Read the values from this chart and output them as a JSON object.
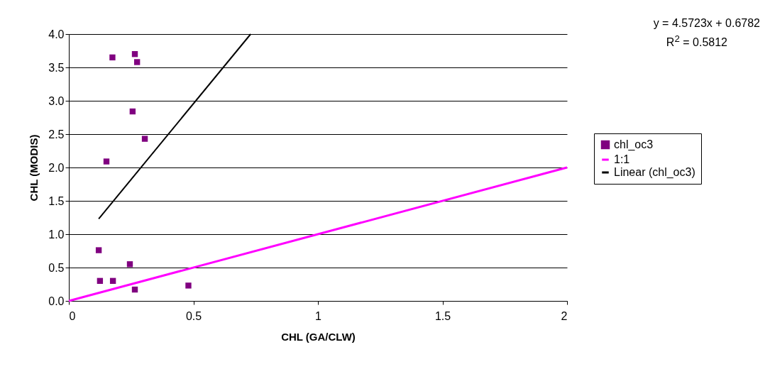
{
  "chart_data": {
    "type": "scatter",
    "xlabel": "CHL (GA/CLW)",
    "ylabel": "CHL (MODIS)",
    "annotations": [
      "y = 4.5723x + 0.6782",
      "R$^{2}$ = 0.5812"
    ],
    "xlim": [
      0,
      2
    ],
    "xticks": [
      0,
      0.5,
      1,
      1.5,
      2
    ],
    "ylim": [
      0,
      4
    ],
    "yticks": [
      {
        "value": 0,
        "label": "0.0"
      },
      {
        "value": 0.5,
        "label": "0.5"
      },
      {
        "value": 1,
        "label": "1.0"
      },
      {
        "value": 1.5,
        "label": "1.5"
      },
      {
        "value": 2,
        "label": "2.0"
      },
      {
        "value": 2.5,
        "label": "2.5"
      },
      {
        "value": 3,
        "label": "3.0"
      },
      {
        "value": 3.5,
        "label": "3.5"
      },
      {
        "value": 4,
        "label": "4.0"
      }
    ],
    "grid": "y",
    "legend": "right",
    "series": [
      {
        "name": "chl_oc3",
        "marker": "square",
        "color": "#800080",
        "x": [
          0.12,
          0.175,
          0.265,
          0.274,
          0.256,
          0.305,
          0.151,
          0.125,
          0.177,
          0.245,
          0.265,
          0.48
        ],
        "values": [
          0.76,
          3.65,
          3.7,
          3.58,
          2.84,
          2.43,
          2.09,
          0.3,
          0.3,
          0.55,
          0.17,
          0.23
        ]
      },
      {
        "name": "1:1",
        "type": "line",
        "color": "#ff00ff",
        "x": [
          0,
          2
        ],
        "values": [
          0,
          2
        ]
      },
      {
        "name": "Linear (chl_oc3)",
        "type": "line",
        "color": "#000000",
        "x": [
          0.12,
          0.73
        ],
        "values": [
          1.23,
          4.0
        ]
      }
    ]
  }
}
